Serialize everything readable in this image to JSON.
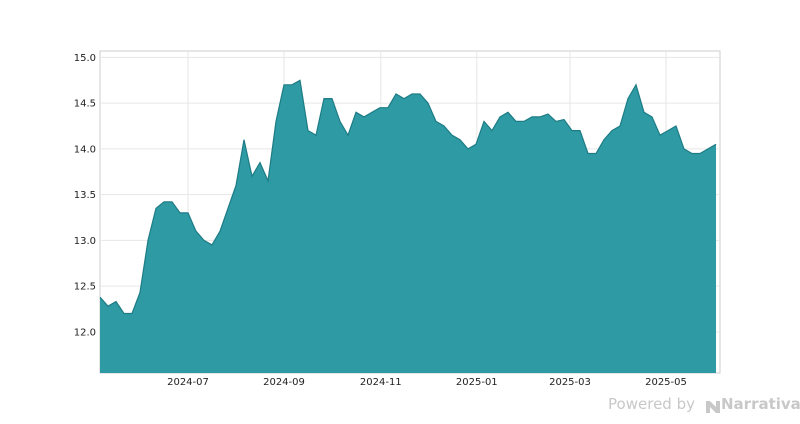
{
  "chart_data": {
    "type": "area",
    "x": [
      0,
      1,
      2,
      3,
      4,
      5,
      6,
      7,
      8,
      9,
      10,
      11,
      12,
      13,
      14,
      15,
      16,
      17,
      18,
      19,
      20,
      21,
      22,
      23,
      24,
      25,
      26,
      27,
      28,
      29,
      30,
      31,
      32,
      33,
      34,
      35,
      36,
      37,
      38,
      39,
      40,
      41,
      42,
      43,
      44,
      45,
      46,
      47,
      48,
      49,
      50,
      51,
      52,
      53,
      54,
      55,
      56,
      57,
      58,
      59,
      60,
      61,
      62,
      63,
      64,
      65,
      66,
      67,
      68,
      69,
      70,
      71,
      72,
      73,
      74,
      75,
      76,
      77
    ],
    "values": [
      12.38,
      12.28,
      12.33,
      12.2,
      12.2,
      12.43,
      13.0,
      13.35,
      13.42,
      13.42,
      13.3,
      13.3,
      13.1,
      13.0,
      12.95,
      13.1,
      13.35,
      13.6,
      14.1,
      13.7,
      13.85,
      13.65,
      14.3,
      14.7,
      14.7,
      14.75,
      14.2,
      14.15,
      14.55,
      14.55,
      14.3,
      14.15,
      14.4,
      14.35,
      14.4,
      14.45,
      14.45,
      14.6,
      14.55,
      14.6,
      14.6,
      14.5,
      14.3,
      14.25,
      14.15,
      14.1,
      14.0,
      14.05,
      14.3,
      14.2,
      14.35,
      14.4,
      14.3,
      14.3,
      14.35,
      14.35,
      14.38,
      14.3,
      14.32,
      14.2,
      14.2,
      13.95,
      13.95,
      14.1,
      14.2,
      14.25,
      14.55,
      14.7,
      14.4,
      14.35,
      14.15,
      14.2,
      14.25,
      14.0,
      13.95,
      13.95,
      14.0,
      14.05
    ],
    "color": "#2e9aa4",
    "line_color": "#1d7c85",
    "xlim": [
      0,
      77.5
    ],
    "xticks": [
      {
        "value": 11,
        "label": "2024-07"
      },
      {
        "value": 23,
        "label": "2024-09"
      },
      {
        "value": 35.1,
        "label": "2024-11"
      },
      {
        "value": 47.1,
        "label": "2025-01"
      },
      {
        "value": 58.75,
        "label": "2025-03"
      },
      {
        "value": 70.75,
        "label": "2025-05"
      }
    ],
    "ylim": [
      11.55,
      15.07
    ],
    "yticks": [
      {
        "value": 12,
        "label": "12.0"
      },
      12.5,
      {
        "value": 13,
        "label": "13.0"
      },
      13.5,
      {
        "value": 14,
        "label": "14.0"
      },
      14.5,
      {
        "value": 15,
        "label": "15.0"
      }
    ],
    "grid": true
  },
  "footer": {
    "prefix": "Powered by",
    "brand": "Narrativa"
  }
}
